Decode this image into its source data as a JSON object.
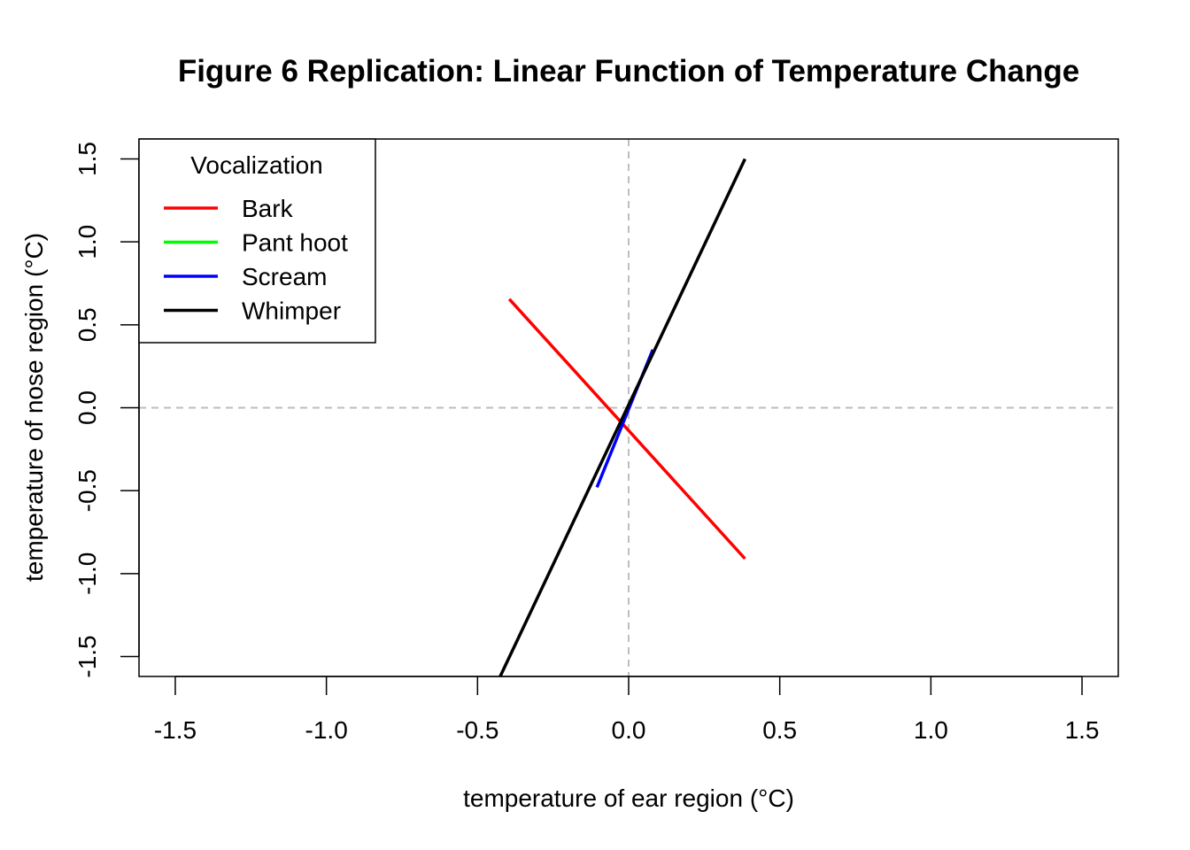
{
  "chart_data": {
    "type": "line",
    "title": "Figure 6 Replication: Linear Function of Temperature Change",
    "xlabel": "temperature of ear region (°C)",
    "ylabel": "temperature of nose region (°C)",
    "xlim": [
      -1.62,
      1.62
    ],
    "ylim": [
      -1.62,
      1.62
    ],
    "x_ticks": [
      -1.5,
      -1.0,
      -0.5,
      0.0,
      0.5,
      1.0,
      1.5
    ],
    "x_tick_labels": [
      "-1.5",
      "-1.0",
      "-0.5",
      "0.0",
      "0.5",
      "1.0",
      "1.5"
    ],
    "y_ticks": [
      -1.5,
      -1.0,
      -0.5,
      0.0,
      0.5,
      1.0,
      1.5
    ],
    "y_tick_labels": [
      "-1.5",
      "-1.0",
      "-0.5",
      "0.0",
      "0.5",
      "1.0",
      "1.5"
    ],
    "reference_lines": {
      "x": 0,
      "y": 0,
      "color": "#bebebe",
      "style": "dashed"
    },
    "grid": false,
    "legend": {
      "title": "Vocalization",
      "position": "top-left"
    },
    "series": [
      {
        "name": "Bark",
        "color": "#ff0000",
        "x": [
          -0.395,
          0.385
        ],
        "y": [
          0.655,
          -0.91
        ]
      },
      {
        "name": "Pant hoot",
        "color": "#00ff00",
        "x": [],
        "y": []
      },
      {
        "name": "Scream",
        "color": "#0000ff",
        "x": [
          -0.105,
          0.08
        ],
        "y": [
          -0.48,
          0.35
        ]
      },
      {
        "name": "Whimper",
        "color": "#000000",
        "x": [
          -0.425,
          0.385
        ],
        "y": [
          -1.62,
          1.5
        ]
      }
    ]
  }
}
